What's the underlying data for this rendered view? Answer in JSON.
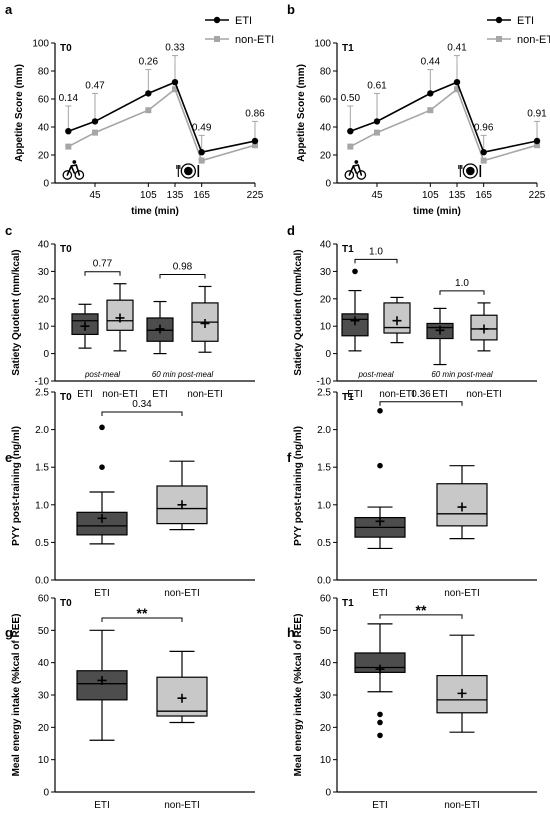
{
  "colors": {
    "eti": "#000000",
    "non_eti": "#a6a6a6",
    "eti_box": "#4d4d4d",
    "non_eti_box": "#c8c8c8",
    "axis": "#000000"
  },
  "chart_data": [
    {
      "panel": "a",
      "type": "line",
      "tag": "T0",
      "xlabel": "time (min)",
      "ylabel": "Appetite Score (mm)",
      "xlim": [
        0,
        225
      ],
      "ylim": [
        0,
        100
      ],
      "x": [
        15,
        45,
        105,
        135,
        165,
        225
      ],
      "x_ticks": [
        45,
        105,
        135,
        165,
        225
      ],
      "y_ticks": [
        0,
        20,
        40,
        60,
        80,
        100
      ],
      "series": [
        {
          "name": "ETI",
          "values": [
            37,
            44,
            64,
            72,
            22,
            30
          ],
          "err": [
            18,
            20,
            17,
            19,
            12,
            14
          ]
        },
        {
          "name": "non-ETI",
          "values": [
            26,
            36,
            52,
            67,
            16,
            27
          ],
          "err": [
            0,
            0,
            0,
            0,
            0,
            0
          ]
        }
      ],
      "p_values": [
        "0.14",
        "0.47",
        "0.26",
        "0.33",
        "0.49",
        "0.86"
      ],
      "icons": [
        "bicycle-icon",
        "meal-icon"
      ]
    },
    {
      "panel": "b",
      "type": "line",
      "tag": "T1",
      "xlabel": "time (min)",
      "ylabel": "Appetite Score (mm)",
      "xlim": [
        0,
        225
      ],
      "ylim": [
        0,
        100
      ],
      "x": [
        15,
        45,
        105,
        135,
        165,
        225
      ],
      "x_ticks": [
        45,
        105,
        135,
        165,
        225
      ],
      "y_ticks": [
        0,
        20,
        40,
        60,
        80,
        100
      ],
      "series": [
        {
          "name": "ETI",
          "values": [
            37,
            44,
            64,
            72,
            22,
            30
          ],
          "err": [
            18,
            20,
            17,
            19,
            12,
            14
          ]
        },
        {
          "name": "non-ETI",
          "values": [
            26,
            36,
            52,
            67,
            16,
            27
          ],
          "err": [
            0,
            0,
            0,
            0,
            0,
            0
          ]
        }
      ],
      "p_values": [
        "0.50",
        "0.61",
        "0.44",
        "0.41",
        "0.96",
        "0.91"
      ],
      "icons": [
        "bicycle-icon",
        "meal-icon"
      ]
    },
    {
      "panel": "c",
      "type": "box",
      "tag": "T0",
      "ylabel": "Satiety Quotient (mm/kcal)",
      "ylim": [
        -10,
        40
      ],
      "y_ticks": [
        -10,
        0,
        10,
        20,
        30,
        40
      ],
      "categories": [
        "ETI",
        "non-ETI",
        "ETI",
        "non-ETI"
      ],
      "groups": [
        "post-meal",
        "60 min post-meal"
      ],
      "boxes": [
        {
          "min": 2,
          "q1": 7,
          "median": 12,
          "q3": 14.5,
          "max": 18,
          "mean": 10,
          "outliers": []
        },
        {
          "min": 1,
          "q1": 8.5,
          "median": 12,
          "q3": 19.5,
          "max": 25.5,
          "mean": 13,
          "outliers": []
        },
        {
          "min": 0,
          "q1": 4.5,
          "median": 8.5,
          "q3": 13,
          "max": 19,
          "mean": 9,
          "outliers": []
        },
        {
          "min": 0.5,
          "q1": 4.5,
          "median": 11.5,
          "q3": 18.5,
          "max": 24.5,
          "mean": 11,
          "outliers": []
        }
      ],
      "comparisons": [
        "0.77",
        "0.98"
      ]
    },
    {
      "panel": "d",
      "type": "box",
      "tag": "T1",
      "ylabel": "Satiety Quotient (mm/kcal)",
      "ylim": [
        -10,
        40
      ],
      "y_ticks": [
        -10,
        0,
        10,
        20,
        30,
        40
      ],
      "categories": [
        "ETI",
        "non-ETI",
        "ETI",
        "non-ETI"
      ],
      "groups": [
        "post-meal",
        "60 min post-meal"
      ],
      "boxes": [
        {
          "min": 1,
          "q1": 6.5,
          "median": 12.5,
          "q3": 14.5,
          "max": 23,
          "mean": 12,
          "outliers": [
            30
          ]
        },
        {
          "min": 4,
          "q1": 7.5,
          "median": 9.5,
          "q3": 18.5,
          "max": 20.5,
          "mean": 12,
          "outliers": []
        },
        {
          "min": -4,
          "q1": 5.5,
          "median": 9.5,
          "q3": 11,
          "max": 16.5,
          "mean": 8.5,
          "outliers": []
        },
        {
          "min": 1,
          "q1": 5,
          "median": 9,
          "q3": 14,
          "max": 18.5,
          "mean": 9,
          "outliers": []
        }
      ],
      "comparisons": [
        "1.0",
        "1.0"
      ]
    },
    {
      "panel": "e",
      "type": "box",
      "tag": "T0",
      "ylabel": "PYY post-training (ng/ml)",
      "ylim": [
        0,
        2.5
      ],
      "y_ticks": [
        0,
        0.5,
        1.0,
        1.5,
        2.0,
        2.5
      ],
      "y_tick_labels": [
        "0.0",
        "0.5",
        "1.0",
        "1.5",
        "2.0",
        "2.5"
      ],
      "categories": [
        "ETI",
        "non-ETI"
      ],
      "boxes": [
        {
          "min": 0.48,
          "q1": 0.6,
          "median": 0.72,
          "q3": 0.9,
          "max": 1.17,
          "mean": 0.82,
          "outliers": [
            1.5,
            2.03
          ]
        },
        {
          "min": 0.67,
          "q1": 0.75,
          "median": 0.95,
          "q3": 1.25,
          "max": 1.58,
          "mean": 1.0,
          "outliers": []
        }
      ],
      "comparisons": [
        "0.34"
      ]
    },
    {
      "panel": "f",
      "type": "box",
      "tag": "T1",
      "ylabel": "PYY post-training (ng/ml)",
      "ylim": [
        0,
        2.5
      ],
      "y_ticks": [
        0,
        0.5,
        1.0,
        1.5,
        2.0,
        2.5
      ],
      "y_tick_labels": [
        "0.0",
        "0.5",
        "1.0",
        "1.5",
        "2.0",
        "2.5"
      ],
      "categories": [
        "ETI",
        "non-ETI"
      ],
      "boxes": [
        {
          "min": 0.42,
          "q1": 0.57,
          "median": 0.7,
          "q3": 0.83,
          "max": 0.97,
          "mean": 0.78,
          "outliers": [
            1.52,
            2.25
          ]
        },
        {
          "min": 0.55,
          "q1": 0.72,
          "median": 0.88,
          "q3": 1.28,
          "max": 1.52,
          "mean": 0.97,
          "outliers": []
        }
      ],
      "comparisons": [
        "0.36"
      ]
    },
    {
      "panel": "g",
      "type": "box",
      "tag": "T0",
      "ylabel": "Meal energy intake (%kcal of REE)",
      "ylim": [
        0,
        60
      ],
      "y_ticks": [
        0,
        10,
        20,
        30,
        40,
        50,
        60
      ],
      "categories": [
        "ETI",
        "non-ETI"
      ],
      "boxes": [
        {
          "min": 16,
          "q1": 28.5,
          "median": 33.5,
          "q3": 37.5,
          "max": 50,
          "mean": 34.5,
          "outliers": []
        },
        {
          "min": 21.5,
          "q1": 23.5,
          "median": 25,
          "q3": 35.5,
          "max": 43.5,
          "mean": 29,
          "outliers": []
        }
      ],
      "comparisons": [
        "**"
      ]
    },
    {
      "panel": "h",
      "type": "box",
      "tag": "T1",
      "ylabel": "Meal energy intake (%kcal of REE)",
      "ylim": [
        0,
        60
      ],
      "y_ticks": [
        0,
        10,
        20,
        30,
        40,
        50,
        60
      ],
      "categories": [
        "ETI",
        "non-ETI"
      ],
      "boxes": [
        {
          "min": 31,
          "q1": 37,
          "median": 38.5,
          "q3": 43,
          "max": 52,
          "mean": 38,
          "outliers": [
            17.5,
            21.5,
            24
          ]
        },
        {
          "min": 18.5,
          "q1": 24.5,
          "median": 28.5,
          "q3": 36,
          "max": 48.5,
          "mean": 30.5,
          "outliers": []
        }
      ],
      "comparisons": [
        "**"
      ]
    }
  ]
}
